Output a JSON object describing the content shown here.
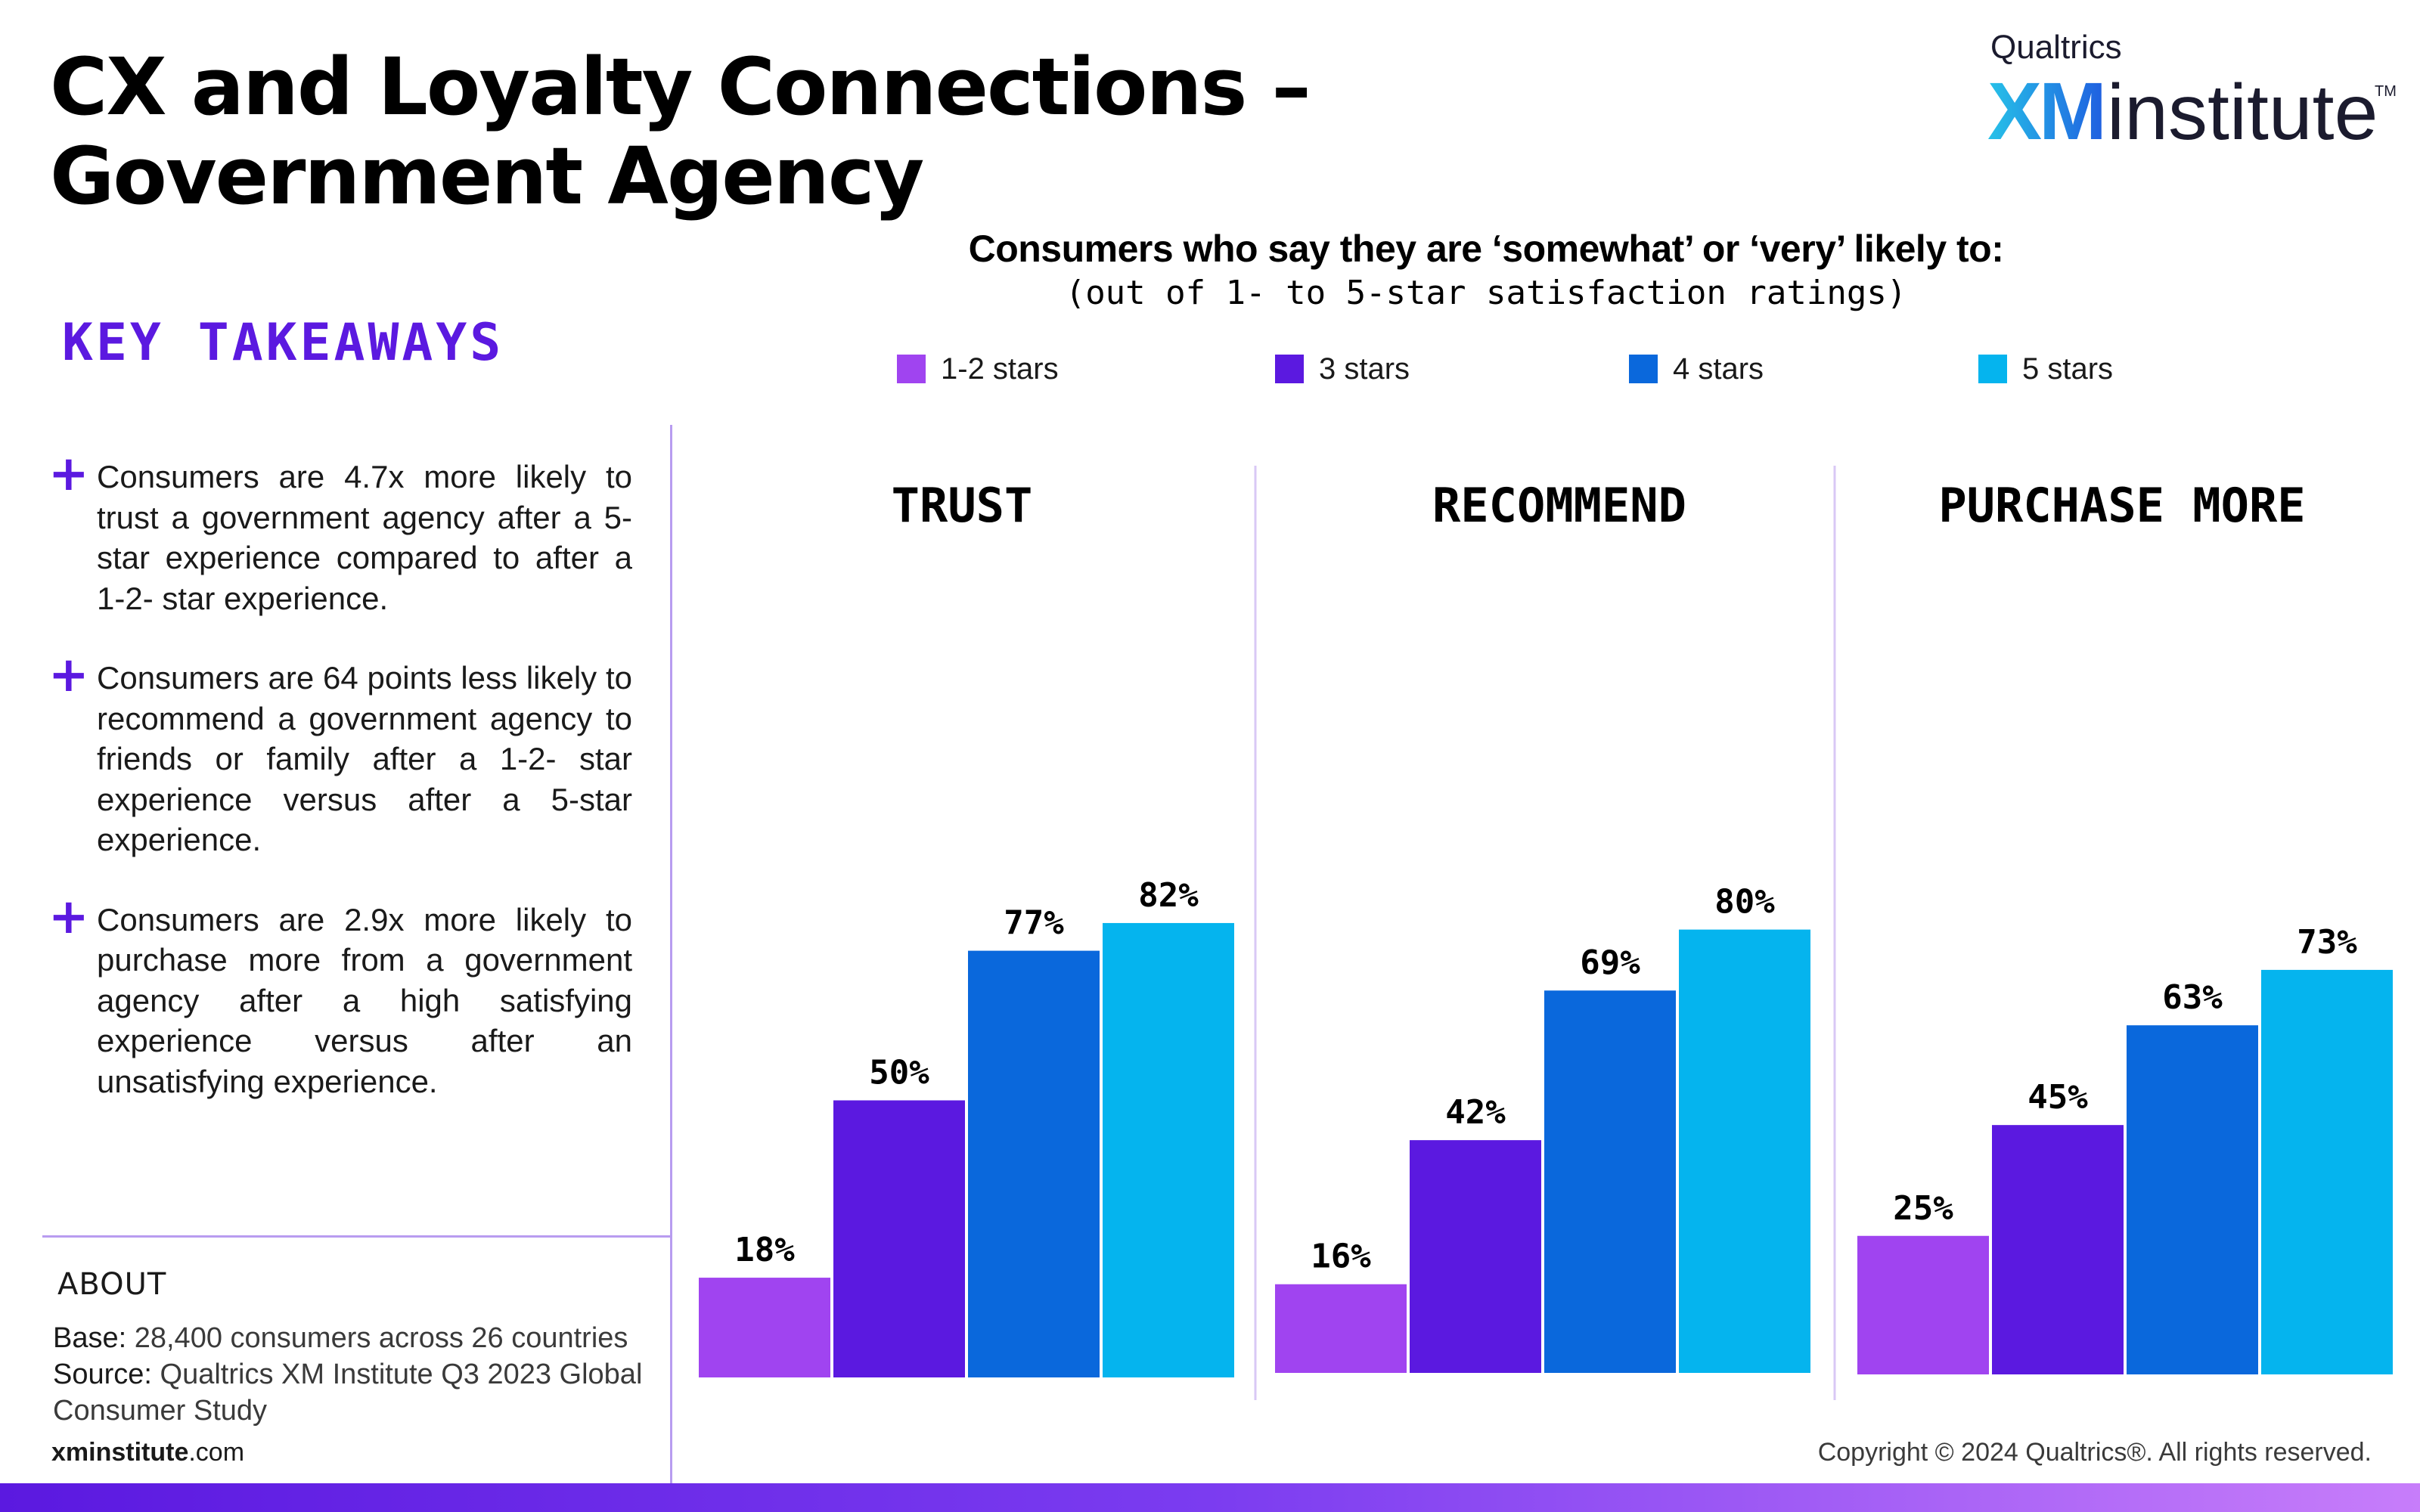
{
  "title": "CX and Loyalty Connections – Government Agency",
  "logo": {
    "small": "Qualtrics",
    "brand": "XM",
    "word": "institute",
    "tm": "TM"
  },
  "takeaways": {
    "heading": "KEY TAKEAWAYS",
    "items": [
      "Consumers are 4.7x more likely to trust a government agency after a 5-star experience compared to after a 1-2- star experience.",
      "Consumers are 64 points less likely to recommend a government agency to friends or family after a 1-2- star experience versus after a 5-star experience.",
      "Consumers are 2.9x more likely to purchase more from a government agency after a high satisfying experience versus after an unsatisfying experience."
    ]
  },
  "about": {
    "heading": "ABOUT",
    "base_label": "Base:",
    "base_text": "28,400 consumers across 26 countries",
    "source_label": "Source:",
    "source_text": "Qualtrics XM Institute Q3 2023 Global Consumer Study"
  },
  "footer": {
    "site_bold": "xminstitute",
    "site_rest": ".com",
    "copyright": "Copyright © 2024 Qualtrics®. All rights reserved."
  },
  "chart_data": {
    "type": "bar",
    "title": "Consumers who say they are ‘somewhat’ or ‘very’ likely to:",
    "subtitle": "(out of 1- to 5-star satisfaction ratings)",
    "categories": [
      "TRUST",
      "RECOMMEND",
      "PURCHASE MORE"
    ],
    "series": [
      {
        "name": "1-2 stars",
        "color": "#a044f0",
        "values": [
          18,
          16,
          25
        ]
      },
      {
        "name": "3 stars",
        "color": "#5b19e0",
        "values": [
          50,
          42,
          45
        ]
      },
      {
        "name": "4 stars",
        "color": "#0a68dc",
        "values": [
          77,
          69,
          63
        ]
      },
      {
        "name": "5 stars",
        "color": "#05b4ee",
        "values": [
          82,
          80,
          73
        ]
      }
    ],
    "value_suffix": "%",
    "ylim": [
      0,
      100
    ],
    "legend_position": "top",
    "grid": false
  }
}
